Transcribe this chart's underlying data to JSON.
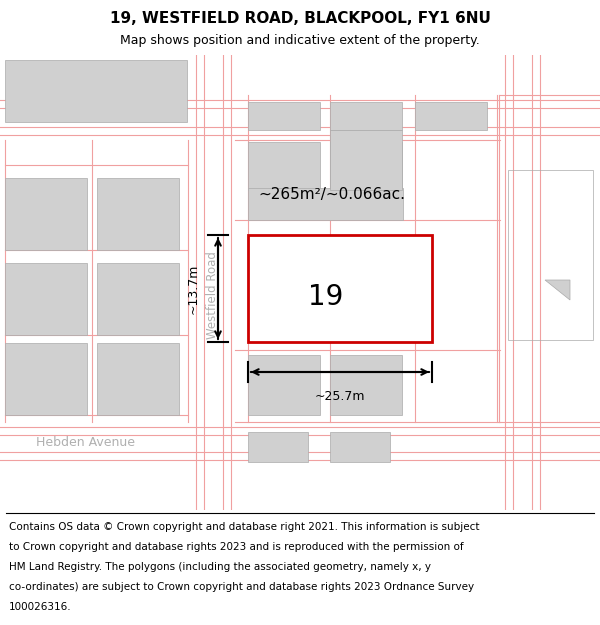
{
  "title": "19, WESTFIELD ROAD, BLACKPOOL, FY1 6NU",
  "subtitle": "Map shows position and indicative extent of the property.",
  "footer_line1": "Contains OS data © Crown copyright and database right 2021. This information is subject",
  "footer_line2": "to Crown copyright and database rights 2023 and is reproduced with the permission of",
  "footer_line3": "HM Land Registry. The polygons (including the associated geometry, namely x, y",
  "footer_line4": "co-ordinates) are subject to Crown copyright and database rights 2023 Ordnance Survey",
  "footer_line5": "100026316.",
  "map_bg": "#eeeeee",
  "road_fill": "#ffffff",
  "building_fill": "#d0d0d0",
  "building_edge": "#aaaaaa",
  "red_boundary": "#f0a0a0",
  "red_property": "#cc0000",
  "area_label": "~265m²/~0.066ac.",
  "width_label": "~25.7m",
  "height_label": "~13.7m",
  "number_label": "19",
  "road_label": "Westfield Road",
  "avenue_label": "Hebden Avenue",
  "title_fs": 11,
  "subtitle_fs": 9,
  "footer_fs": 7.5,
  "label_fs": 9
}
